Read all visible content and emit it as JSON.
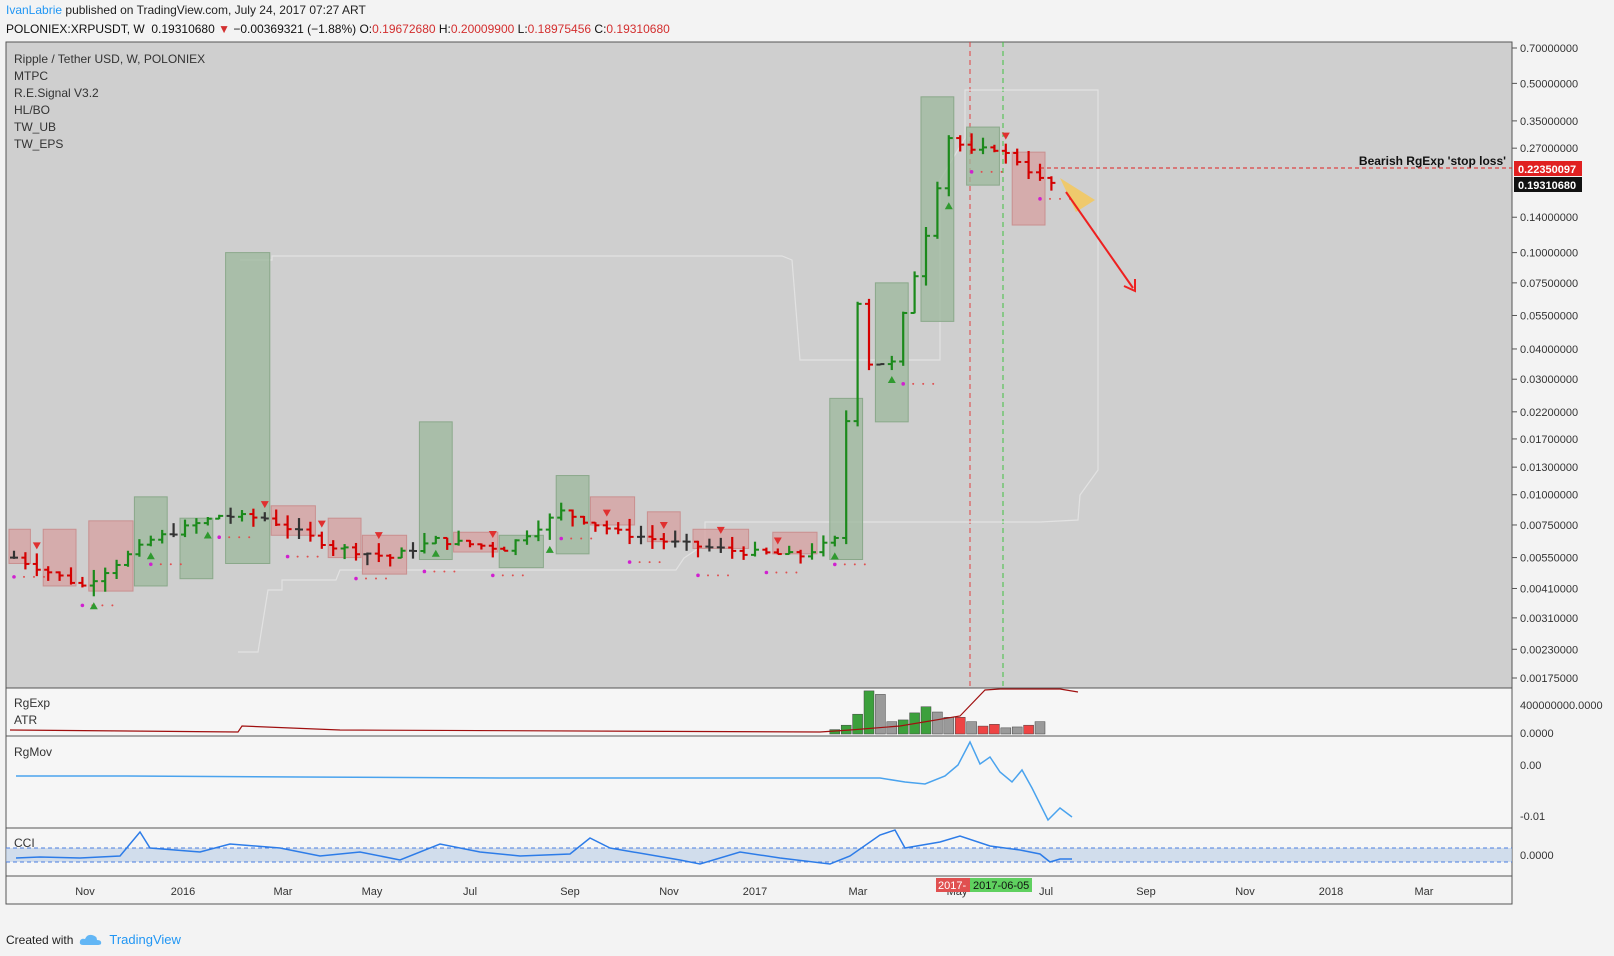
{
  "header": {
    "author": "IvanLabrie",
    "published_text": "published on TradingView.com, July 24, 2017 07:27 ART",
    "symbol": "POLONIEX:XRPUSDT, W",
    "last": "0.19310680",
    "change_icon": "down-triangle-icon",
    "change": "−0.00369321 (−1.88%)",
    "o_label": "O:",
    "o": "0.19672680",
    "h_label": "H:",
    "h": "0.20009900",
    "l_label": "L:",
    "l": "0.18975456",
    "c_label": "C:",
    "c": "0.19310680"
  },
  "legend": {
    "title": "Ripple / Tether USD, W, POLONIEX",
    "indicators": [
      "MTPC",
      "R.E.Signal V3.2",
      "HL/BO",
      "TW_UB",
      "TW_EPS"
    ]
  },
  "annotation": {
    "text": "Bearish RgExp 'stop loss'"
  },
  "price_labels": {
    "stop": "0.22350097",
    "last": "0.19310680"
  },
  "pane_labels": {
    "rgexp": "RgExp",
    "atr": "ATR",
    "rgmov": "RgMov",
    "cci": "CCI"
  },
  "pane_ticks": {
    "rgexp": [
      "400000000.0000",
      "0.0000"
    ],
    "rgmov": [
      "0.00",
      "-0.01"
    ],
    "cci": [
      "0.0000"
    ]
  },
  "time_badges": [
    "2017-",
    "2017-06-05"
  ],
  "footer": {
    "created_with": "Created with",
    "brand": "TradingView",
    "logo_icon": "tradingview-cloud-icon"
  },
  "colors": {
    "up": "#1b8a1b",
    "down": "#d40000",
    "neutral": "#333333",
    "bg": "#cfcfcf",
    "accent": "#2196f3"
  },
  "chart_data": {
    "type": "candlestick-ohlc",
    "timeframe": "W",
    "y_scale": "log",
    "y_ticks": [
      "0.70000000",
      "0.50000000",
      "0.35000000",
      "0.27000000",
      "0.14000000",
      "0.10000000",
      "0.07500000",
      "0.05500000",
      "0.04000000",
      "0.03000000",
      "0.02200000",
      "0.01700000",
      "0.01300000",
      "0.01000000",
      "0.00750000",
      "0.00550000",
      "0.00410000",
      "0.00310000",
      "0.00230000",
      "0.00175000"
    ],
    "x_ticks": [
      "Nov",
      "2016",
      "Mar",
      "May",
      "Jul",
      "Sep",
      "Nov",
      "2017",
      "Mar",
      "May",
      "Jul",
      "Sep",
      "Nov",
      "2018",
      "Mar"
    ],
    "ylim": [
      0.00175,
      0.7
    ],
    "close_path": [
      {
        "t": 0,
        "v": 0.0055
      },
      {
        "t": 6,
        "v": 0.0042
      },
      {
        "t": 12,
        "v": 0.0065
      },
      {
        "t": 18,
        "v": 0.0082
      },
      {
        "t": 22,
        "v": 0.008
      },
      {
        "t": 28,
        "v": 0.0061
      },
      {
        "t": 33,
        "v": 0.0055
      },
      {
        "t": 37,
        "v": 0.0065
      },
      {
        "t": 43,
        "v": 0.006
      },
      {
        "t": 48,
        "v": 0.0085
      },
      {
        "t": 53,
        "v": 0.007
      },
      {
        "t": 58,
        "v": 0.0063
      },
      {
        "t": 64,
        "v": 0.0058
      },
      {
        "t": 69,
        "v": 0.0056
      },
      {
        "t": 72,
        "v": 0.0065
      },
      {
        "t": 74,
        "v": 0.063
      },
      {
        "t": 75,
        "v": 0.035
      },
      {
        "t": 77,
        "v": 0.035
      },
      {
        "t": 78,
        "v": 0.055
      },
      {
        "t": 80,
        "v": 0.12
      },
      {
        "t": 82,
        "v": 0.3
      },
      {
        "t": 84,
        "v": 0.26
      },
      {
        "t": 86,
        "v": 0.27
      },
      {
        "t": 88,
        "v": 0.24
      },
      {
        "t": 90,
        "v": 0.2
      },
      {
        "t": 91,
        "v": 0.1931
      }
    ],
    "stop_loss": 0.2235,
    "last": 0.1931,
    "projection": [
      {
        "t": 91,
        "v": 0.1931
      },
      {
        "t": 96,
        "v": 0.077
      }
    ]
  }
}
